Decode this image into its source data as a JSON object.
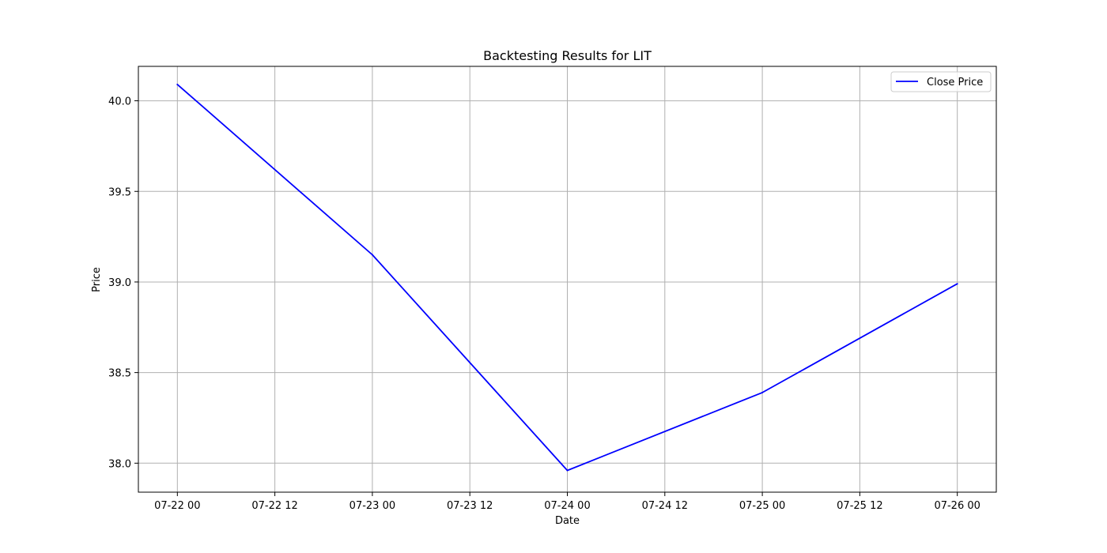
{
  "chart_data": {
    "type": "line",
    "title": "Backtesting Results for LIT",
    "xlabel": "Date",
    "ylabel": "Price",
    "x": [
      "2024-07-22 00:00",
      "2024-07-23 00:00",
      "2024-07-24 00:00",
      "2024-07-25 00:00",
      "2024-07-26 00:00"
    ],
    "series": [
      {
        "name": "Close Price",
        "color": "#0000ff",
        "values": [
          40.09,
          39.15,
          37.96,
          38.39,
          38.99
        ]
      }
    ],
    "xlim": [
      "2024-07-21 19:12",
      "2024-07-26 04:48"
    ],
    "ylim": [
      37.84,
      40.19
    ],
    "x_ticks": [
      {
        "value": "2024-07-22 00:00",
        "label": "07-22 00"
      },
      {
        "value": "2024-07-22 12:00",
        "label": "07-22 12"
      },
      {
        "value": "2024-07-23 00:00",
        "label": "07-23 00"
      },
      {
        "value": "2024-07-23 12:00",
        "label": "07-23 12"
      },
      {
        "value": "2024-07-24 00:00",
        "label": "07-24 00"
      },
      {
        "value": "2024-07-24 12:00",
        "label": "07-24 12"
      },
      {
        "value": "2024-07-25 00:00",
        "label": "07-25 00"
      },
      {
        "value": "2024-07-25 12:00",
        "label": "07-25 12"
      },
      {
        "value": "2024-07-26 00:00",
        "label": "07-26 00"
      }
    ],
    "y_ticks": [
      {
        "value": 38.0,
        "label": "38.0"
      },
      {
        "value": 38.5,
        "label": "38.5"
      },
      {
        "value": 39.0,
        "label": "39.0"
      },
      {
        "value": 39.5,
        "label": "39.5"
      },
      {
        "value": 40.0,
        "label": "40.0"
      }
    ],
    "grid": true,
    "legend_position": "top-right",
    "grid_color": "#b0b0b0",
    "axes_color": "#000000"
  }
}
